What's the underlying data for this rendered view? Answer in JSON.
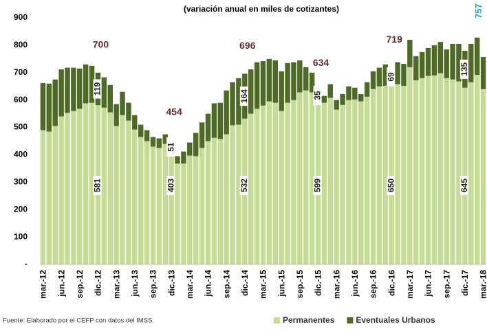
{
  "chart_data": {
    "type": "stacked_bar",
    "title": "(variación anual en miles de cotizantes)",
    "source": "Fuente: Elaborado por el CEFP con datos del IMSS.",
    "categories": [
      "mar.-12",
      null,
      null,
      "jun.-12",
      null,
      null,
      "sep.-12",
      null,
      null,
      "dic.-12",
      null,
      null,
      "mar.-13",
      null,
      null,
      "jun.-13",
      null,
      null,
      "sep.-13",
      null,
      null,
      "dic.-13",
      null,
      null,
      "mar.-14",
      null,
      null,
      "jun.-14",
      null,
      null,
      "sep.-14",
      null,
      null,
      "dic.-14",
      null,
      null,
      "mar.-15",
      null,
      null,
      "jun.-15",
      null,
      null,
      "sep.-15",
      null,
      null,
      "dic.-15",
      null,
      null,
      "mar.-16",
      null,
      null,
      "jun.-16",
      null,
      null,
      "sep.-16",
      null,
      null,
      "dic.-16",
      null,
      null,
      "mar.-17",
      null,
      null,
      "jun.-17",
      null,
      null,
      "sep.-17",
      null,
      null,
      "dic.-17",
      null,
      null,
      "mar.-18"
    ],
    "series": [
      {
        "name": "Permanentes",
        "color": "#c4dc93",
        "values": [
          490,
          485,
          505,
          540,
          553,
          560,
          568,
          588,
          590,
          581,
          572,
          555,
          505,
          545,
          525,
          492,
          465,
          450,
          430,
          425,
          440,
          403,
          368,
          368,
          397,
          395,
          425,
          450,
          462,
          458,
          475,
          508,
          510,
          532,
          550,
          568,
          580,
          595,
          590,
          560,
          590,
          600,
          628,
          635,
          628,
          599,
          590,
          608,
          565,
          582,
          600,
          602,
          595,
          612,
          640,
          650,
          652,
          650,
          658,
          652,
          720,
          672,
          680,
          688,
          690,
          698,
          680,
          675,
          668,
          645,
          665,
          692,
          640
        ],
        "value_labels": [
          null,
          null,
          null,
          null,
          null,
          null,
          null,
          null,
          null,
          "581",
          null,
          null,
          null,
          null,
          null,
          null,
          null,
          null,
          null,
          null,
          null,
          "403",
          null,
          null,
          null,
          null,
          null,
          null,
          null,
          null,
          null,
          null,
          null,
          "532",
          null,
          null,
          null,
          null,
          null,
          null,
          null,
          null,
          null,
          null,
          null,
          "599",
          null,
          null,
          null,
          null,
          null,
          null,
          null,
          null,
          null,
          null,
          null,
          "650",
          null,
          null,
          null,
          null,
          null,
          null,
          null,
          null,
          null,
          null,
          null,
          "645",
          null,
          null,
          null
        ]
      },
      {
        "name": "Eventuales Urbanos",
        "color": "#4e6b26",
        "values": [
          172,
          175,
          170,
          172,
          165,
          158,
          147,
          142,
          135,
          119,
          111,
          100,
          80,
          85,
          65,
          53,
          45,
          40,
          35,
          35,
          35,
          51,
          27,
          44,
          48,
          85,
          93,
          100,
          126,
          132,
          160,
          157,
          170,
          164,
          162,
          170,
          162,
          155,
          155,
          145,
          145,
          138,
          117,
          85,
          72,
          35,
          25,
          50,
          35,
          40,
          50,
          43,
          27,
          53,
          65,
          68,
          78,
          69,
          80,
          80,
          100,
          88,
          95,
          102,
          110,
          114,
          105,
          130,
          137,
          135,
          140,
          136,
          117
        ],
        "value_labels": [
          null,
          null,
          null,
          null,
          null,
          null,
          null,
          null,
          null,
          "119",
          null,
          null,
          null,
          null,
          null,
          null,
          null,
          null,
          null,
          null,
          null,
          "51",
          null,
          null,
          null,
          null,
          null,
          null,
          null,
          null,
          null,
          null,
          null,
          "164",
          null,
          null,
          null,
          null,
          null,
          null,
          null,
          null,
          null,
          null,
          null,
          "35",
          null,
          null,
          null,
          null,
          null,
          null,
          null,
          null,
          null,
          null,
          null,
          "69",
          null,
          null,
          null,
          null,
          null,
          null,
          null,
          null,
          null,
          null,
          null,
          "135",
          null,
          null,
          null
        ]
      }
    ],
    "total_labels": [
      null,
      null,
      null,
      null,
      null,
      null,
      null,
      null,
      null,
      "700",
      null,
      null,
      null,
      null,
      null,
      null,
      null,
      null,
      null,
      null,
      null,
      "454",
      null,
      null,
      null,
      null,
      null,
      null,
      null,
      null,
      null,
      null,
      null,
      "696",
      null,
      null,
      null,
      null,
      null,
      null,
      null,
      null,
      null,
      null,
      null,
      "634",
      null,
      null,
      null,
      null,
      null,
      null,
      null,
      null,
      null,
      null,
      null,
      "719",
      null,
      null,
      null,
      null,
      null,
      null,
      null,
      null,
      null,
      null,
      null,
      null,
      null,
      null,
      "757"
    ],
    "total_label_color": "#6b2b2b",
    "last_total_color": "#1aa5df",
    "ylim": [
      0,
      900
    ],
    "yticks": [
      {
        "value": 0,
        "label": "-"
      },
      100,
      200,
      300,
      400,
      500,
      600,
      700,
      800,
      900
    ],
    "legend": "bottom-right"
  }
}
